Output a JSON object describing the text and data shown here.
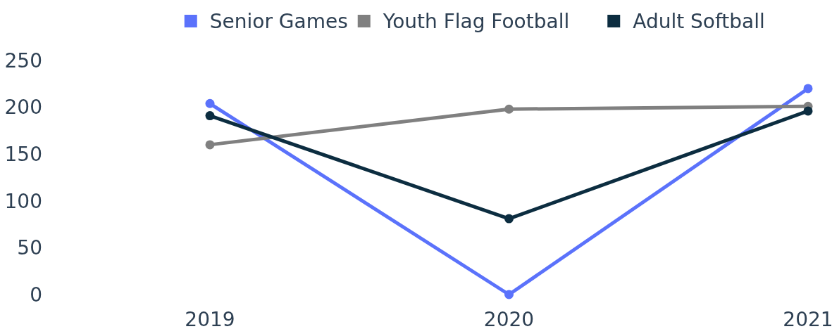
{
  "chart_data": {
    "type": "line",
    "categories": [
      "2019",
      "2020",
      "2021"
    ],
    "series": [
      {
        "name": "Senior Games",
        "color": "#5b72fb",
        "values": [
          204,
          0,
          220
        ]
      },
      {
        "name": "Youth Flag Football",
        "color": "#808080",
        "values": [
          160,
          198,
          201
        ]
      },
      {
        "name": "Adult Softball",
        "color": "#0c2d40",
        "values": [
          191,
          81,
          196
        ]
      }
    ],
    "ylim": [
      0,
      250
    ],
    "yticks": [
      0,
      50,
      100,
      150,
      200,
      250
    ],
    "grid": false,
    "legend": "top",
    "marker": "circle",
    "line_style": "solid"
  }
}
